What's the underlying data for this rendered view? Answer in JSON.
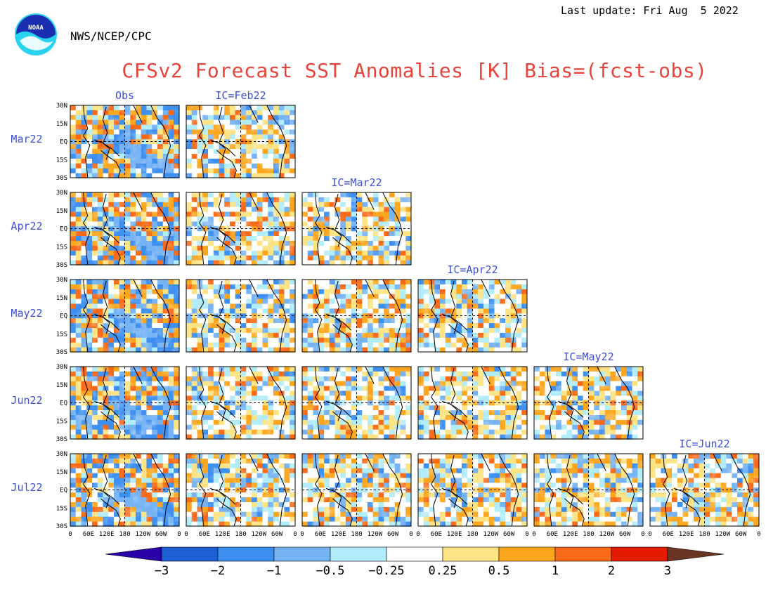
{
  "header": {
    "last_update": "Last update: Fri Aug  5 2022",
    "agency": "NWS/NCEP/CPC",
    "title": "CFSv2 Forecast SST Anomalies [K] Bias=(fcst-obs)",
    "logo_text": "NOAA"
  },
  "chart_data": {
    "type": "heatmap",
    "title": "CFSv2 Forecast SST Anomalies [K] Bias=(fcst-obs)",
    "unit": "K",
    "rows": [
      "Mar22",
      "Apr22",
      "May22",
      "Jun22",
      "Jul22"
    ],
    "columns": [
      "Obs",
      "IC=Feb22",
      "IC=Mar22",
      "IC=Apr22",
      "IC=May22",
      "IC=Jun22"
    ],
    "y_ticks": [
      "30N",
      "15N",
      "EQ",
      "15S",
      "30S"
    ],
    "x_ticks": [
      "0",
      "60E",
      "120E",
      "180",
      "120W",
      "60W",
      "0"
    ],
    "colorbar": {
      "levels": [
        "-3",
        "-2",
        "-1",
        "-0.5",
        "-0.25",
        "0.25",
        "0.5",
        "1",
        "2",
        "3"
      ],
      "colors": [
        "#2a00a8",
        "#1f5fd6",
        "#3d8ff0",
        "#76b3f5",
        "#b0ecf9",
        "#ffffff",
        "#fde383",
        "#fca61e",
        "#f86a18",
        "#e31c00",
        "#9e0303",
        "#6b3524"
      ]
    }
  }
}
